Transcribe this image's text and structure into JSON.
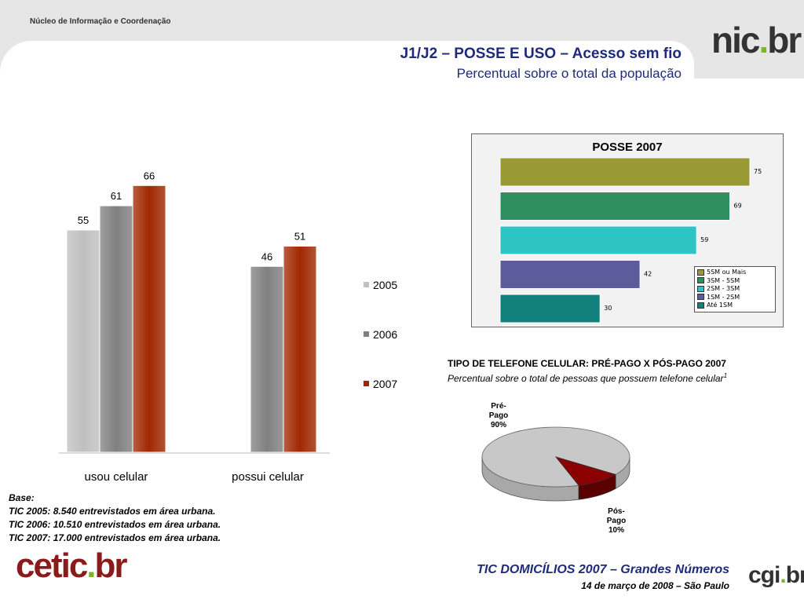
{
  "header": {
    "org": "Núcleo de Informação e Coordenação",
    "logo_prefix": "nic",
    "logo_dot": ".",
    "logo_suffix": "br",
    "title": "J1/J2 – POSSE E USO – Acesso sem fio",
    "subtitle": "Percentual sobre o total da população"
  },
  "chart_data": [
    {
      "type": "bar",
      "categories": [
        "usou celular",
        "possui celular"
      ],
      "series": [
        {
          "name": "2005",
          "values": [
            55,
            null
          ],
          "color": "#c0c0c0"
        },
        {
          "name": "2006",
          "values": [
            61,
            46
          ],
          "color": "#808080"
        },
        {
          "name": "2007",
          "values": [
            66,
            51
          ],
          "color": "#a02800"
        }
      ],
      "ylim": [
        0,
        75
      ],
      "legend_position": "right"
    },
    {
      "type": "bar",
      "orientation": "horizontal",
      "title": "POSSE 2007",
      "categories": [
        "5SM ou Mais",
        "3SM - 5SM",
        "2SM - 3SM",
        "1SM - 2SM",
        "Até 1SM"
      ],
      "values": [
        75,
        69,
        59,
        42,
        30
      ],
      "colors": [
        "#9a9a34",
        "#2f8f5f",
        "#2ec4c4",
        "#5c5c9c",
        "#12807c"
      ],
      "xlim": [
        0,
        80
      ],
      "legend_position": "bottom-right"
    },
    {
      "type": "pie",
      "title": "TIPO DE TELEFONE CELULAR: PRÉ-PAGO X PÓS-PAGO 2007",
      "subtitle": "Percentual sobre o total de pessoas que possuem telefone celular",
      "subtitle_note": "1",
      "labels": [
        [
          "Pré-",
          "Pago",
          "90%"
        ],
        [
          "Pós-",
          "Pago",
          "10%"
        ]
      ],
      "values": [
        90,
        10
      ],
      "colors": [
        "#c8c8c8",
        "#8b0000"
      ]
    }
  ],
  "base": {
    "heading": "Base:",
    "lines": [
      "TIC 2005: 8.540 entrevistados em área urbana.",
      "TIC 2006: 10.510 entrevistados em área urbana.",
      "TIC 2007: 17.000 entrevistados em área urbana."
    ]
  },
  "footer": {
    "title": "TIC DOMICÍLIOS 2007 – Grandes Números",
    "date": "14 de março de 2008 – São Paulo",
    "cetic_prefix": "cetic",
    "cetic_dot": ".",
    "cetic_suffix": "br",
    "cgi_prefix": "cgi",
    "cgi_dot": ".",
    "cgi_suffix": "br"
  }
}
